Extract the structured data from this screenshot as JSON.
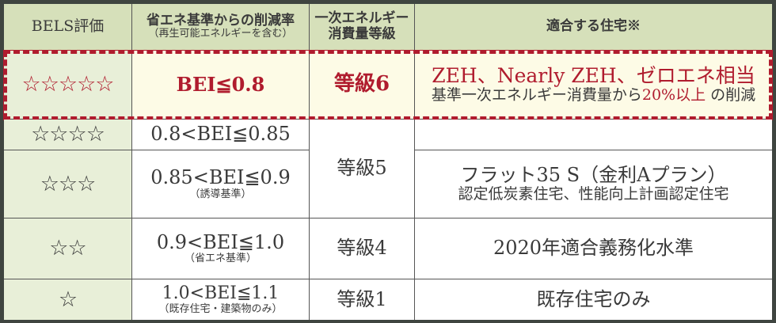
{
  "header": {
    "rating": "BELS評価",
    "reduction": "省エネ基準からの削減率",
    "reduction_note": "（再生可能エネルギーを含む）",
    "grade_line1": "一次エネルギー",
    "grade_line2": "消費量等級",
    "housing": "適合する住宅※"
  },
  "rows": [
    {
      "stars": "☆☆☆☆☆",
      "bei": "BEI≦0.8",
      "grade": "等級6",
      "housing": "ZEH、Nearly ZEH、ゼロエネ相当",
      "housing_sub_a": "基準一次エネルギー消費量から",
      "housing_sub_b": "20%以上",
      "housing_sub_c": " の削減"
    },
    {
      "stars": "☆☆☆☆",
      "bei": "0.8<BEI≦0.85"
    },
    {
      "stars": "☆☆☆",
      "bei": "0.85<BEI≦0.9",
      "bei_note": "（誘導基準）",
      "grade": "等級5",
      "housing": "フラット35 S（金利Aプラン）",
      "housing_sub": "認定低炭素住宅、性能向上計画認定住宅"
    },
    {
      "stars": "☆☆",
      "bei": "0.9<BEI≦1.0",
      "bei_note": "（省エネ基準）",
      "grade": "等級4",
      "housing": "2020年適合義務化水準"
    },
    {
      "stars": "☆",
      "bei": "1.0<BEI≦1.1",
      "bei_note": "（既存住宅・建築物のみ）",
      "grade": "等級1",
      "housing": "既存住宅のみ"
    }
  ],
  "colors": {
    "highlight": "#b01c2e",
    "header_bg": "#d6e0ba",
    "rating_bg": "#e8efd8",
    "highlight_bg": "#fdfbe6"
  }
}
